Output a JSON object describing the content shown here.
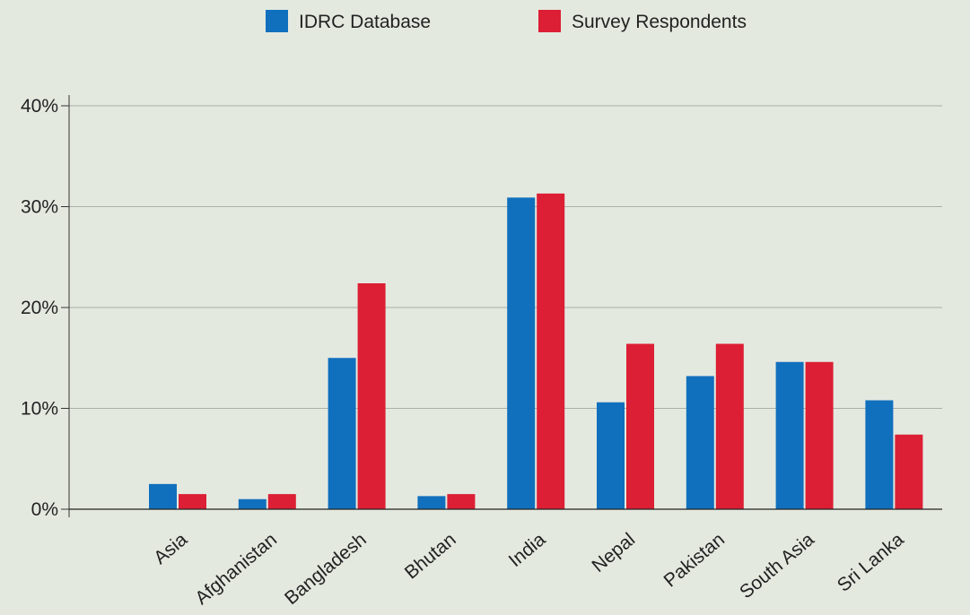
{
  "chart_data": {
    "type": "bar",
    "title": "",
    "xlabel": "",
    "ylabel": "",
    "categories": [
      "Asia",
      "Afghanistan",
      "Bangladesh",
      "Bhutan",
      "India",
      "Nepal",
      "Pakistan",
      "South Asia",
      "Sri Lanka"
    ],
    "series": [
      {
        "name": "IDRC Database",
        "color": "#1170bd",
        "values": [
          2.5,
          1.0,
          15.0,
          1.3,
          30.9,
          10.6,
          13.2,
          14.6,
          10.8
        ]
      },
      {
        "name": "Survey Respondents",
        "color": "#dc1f34",
        "values": [
          1.5,
          1.5,
          22.4,
          1.5,
          31.3,
          16.4,
          16.4,
          14.6,
          7.4
        ]
      }
    ],
    "ylim": [
      0,
      40
    ],
    "yticks": [
      0,
      10,
      20,
      30,
      40
    ],
    "ytick_labels": [
      "0%",
      "10%",
      "20%",
      "30%",
      "40%"
    ],
    "grid": true,
    "legend_position": "top-center"
  }
}
